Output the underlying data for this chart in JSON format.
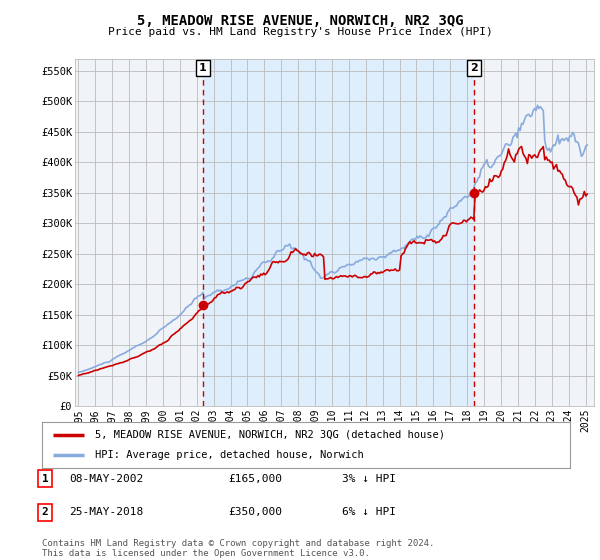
{
  "title": "5, MEADOW RISE AVENUE, NORWICH, NR2 3QG",
  "subtitle": "Price paid vs. HM Land Registry's House Price Index (HPI)",
  "ylabel_ticks": [
    "£0",
    "£50K",
    "£100K",
    "£150K",
    "£200K",
    "£250K",
    "£300K",
    "£350K",
    "£400K",
    "£450K",
    "£500K",
    "£550K"
  ],
  "ytick_values": [
    0,
    50000,
    100000,
    150000,
    200000,
    250000,
    300000,
    350000,
    400000,
    450000,
    500000,
    550000
  ],
  "ylim": [
    0,
    570000
  ],
  "xlim_start": 1994.8,
  "xlim_end": 2025.5,
  "sale1_x": 2002.37,
  "sale1_y": 165000,
  "sale2_x": 2018.39,
  "sale2_y": 350000,
  "vline_color": "#cc0000",
  "line_color_property": "#cc0000",
  "line_color_hpi": "#88aadd",
  "shade_color": "#ddeeff",
  "marker_color": "#cc0000",
  "background_color": "#ffffff",
  "chart_bg_color": "#f0f4f8",
  "grid_color": "#bbbbbb",
  "legend_label_property": "5, MEADOW RISE AVENUE, NORWICH, NR2 3QG (detached house)",
  "legend_label_hpi": "HPI: Average price, detached house, Norwich",
  "annotation1_num": "1",
  "annotation1_date": "08-MAY-2002",
  "annotation1_price": "£165,000",
  "annotation1_hpi": "3% ↓ HPI",
  "annotation2_num": "2",
  "annotation2_date": "25-MAY-2018",
  "annotation2_price": "£350,000",
  "annotation2_hpi": "6% ↓ HPI",
  "footnote": "Contains HM Land Registry data © Crown copyright and database right 2024.\nThis data is licensed under the Open Government Licence v3.0."
}
